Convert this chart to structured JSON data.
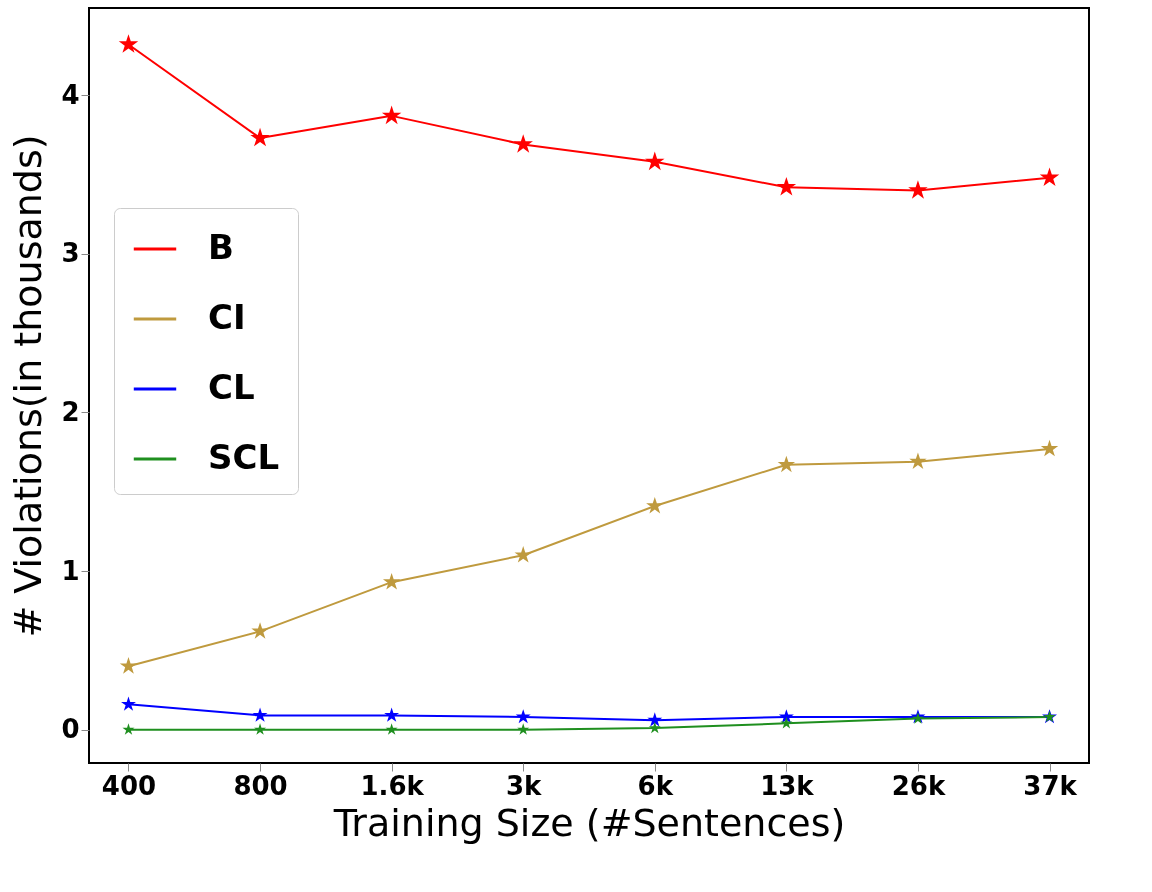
{
  "chart_data": {
    "type": "line",
    "xlabel": "Training Size (#Sentences)",
    "ylabel": "# Violations(in thousands)",
    "categories": [
      "400",
      "800",
      "1.6k",
      "3k",
      "6k",
      "13k",
      "26k",
      "37k"
    ],
    "series": [
      {
        "name": "B",
        "color": "#ff0000",
        "values": [
          4.32,
          3.73,
          3.87,
          3.69,
          3.58,
          3.42,
          3.4,
          3.48
        ]
      },
      {
        "name": "CI",
        "color": "#bf9a3e",
        "values": [
          0.4,
          0.62,
          0.93,
          1.1,
          1.41,
          1.67,
          1.69,
          1.77
        ]
      },
      {
        "name": "CL",
        "color": "#0000ff",
        "values": [
          0.16,
          0.09,
          0.09,
          0.08,
          0.06,
          0.08,
          0.08,
          0.08
        ]
      },
      {
        "name": "SCL",
        "color": "#1f8f1f",
        "values": [
          0.0,
          0.0,
          0.0,
          0.0,
          0.01,
          0.04,
          0.07,
          0.08
        ]
      }
    ],
    "ylim": [
      -0.21,
      4.55
    ],
    "yticks": [
      0,
      1,
      2,
      3,
      4
    ],
    "grid": false,
    "legend": "left",
    "marker": "star",
    "line_style": "solid"
  }
}
